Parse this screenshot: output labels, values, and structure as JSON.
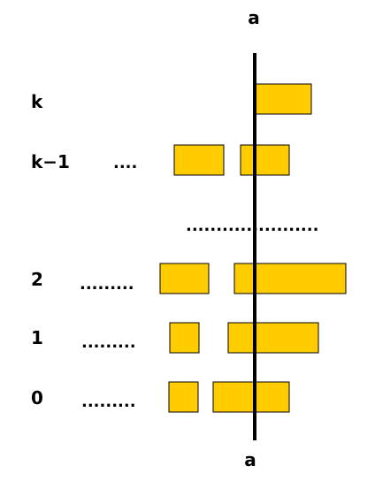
{
  "axis": {
    "top_label": "a",
    "bottom_label": "a"
  },
  "box_color": "#FFCC00",
  "levels": [
    {
      "label": "k",
      "leader": "",
      "boxes": 1
    },
    {
      "label": "k−1",
      "leader": "....",
      "boxes": 2
    },
    {
      "label": "2",
      "leader": ".........",
      "boxes": 2
    },
    {
      "label": "1",
      "leader": ".........",
      "boxes": 2
    },
    {
      "label": "0",
      "leader": ".........",
      "boxes": 2
    }
  ],
  "middle_ellipsis": "......................"
}
